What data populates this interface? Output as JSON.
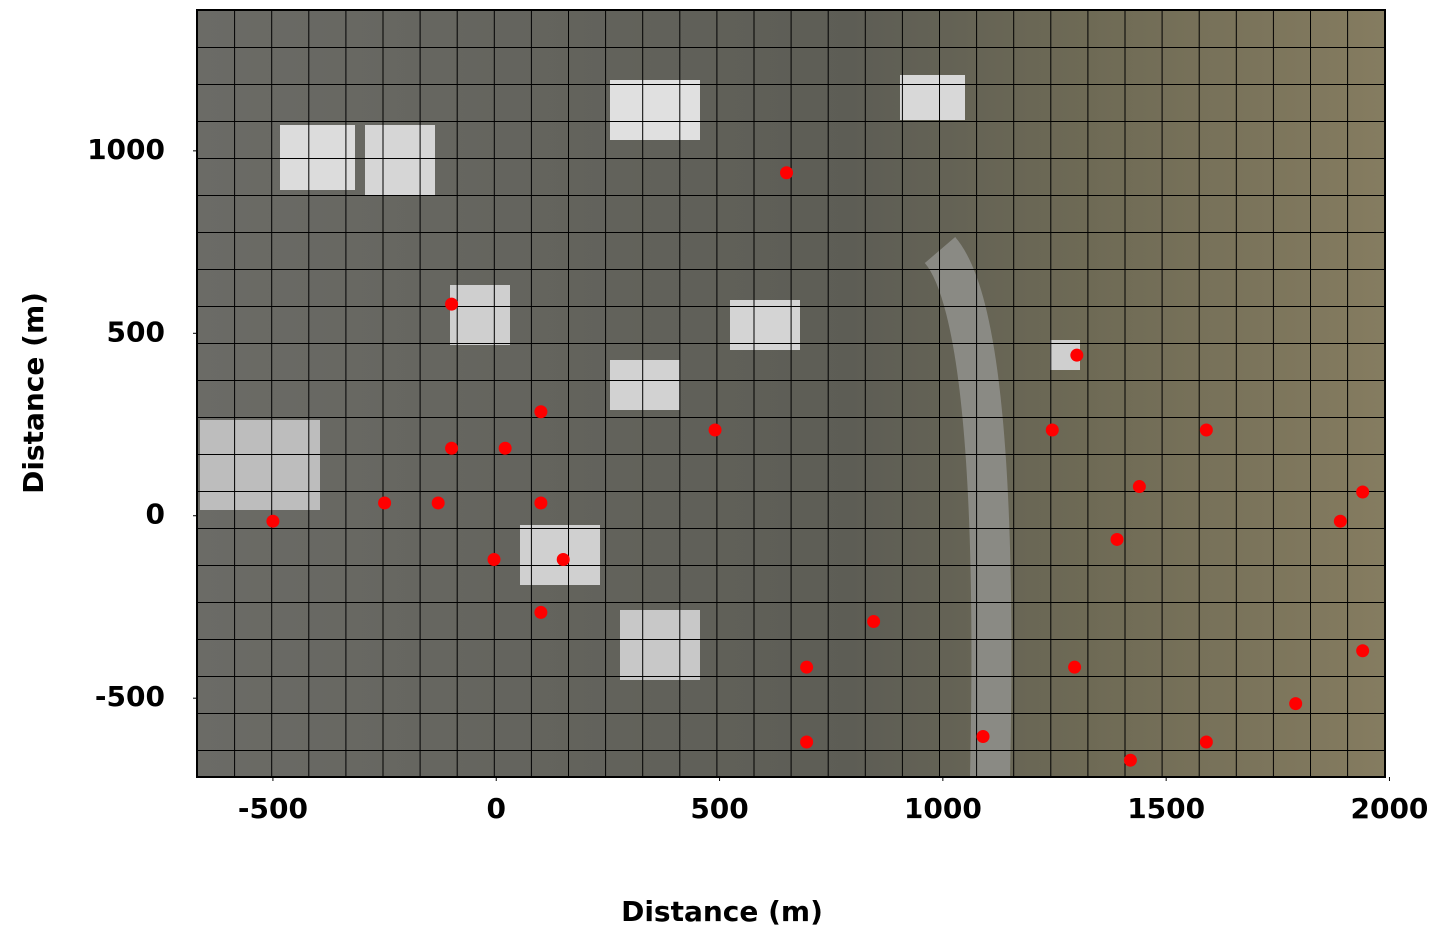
{
  "chart_data": {
    "type": "scatter",
    "x_label": "Distance (m)",
    "y_label": "Distance (m)",
    "color": "#ff0000",
    "x": [
      650,
      -100,
      1300,
      100,
      490,
      1245,
      1590,
      -100,
      20,
      1440,
      1940,
      -500,
      -250,
      -130,
      100,
      1890,
      1390,
      -5,
      150,
      100,
      845,
      1940,
      695,
      1295,
      1790,
      1090,
      695,
      1590,
      1420
    ],
    "y": [
      940,
      580,
      440,
      285,
      235,
      235,
      235,
      185,
      185,
      80,
      65,
      -15,
      35,
      35,
      35,
      -15,
      -65,
      -120,
      -120,
      -265,
      -290,
      -370,
      -415,
      -415,
      -515,
      -605,
      -620,
      -620,
      -670
    ],
    "xlim": [
      -670,
      1990
    ],
    "ylim": [
      -716,
      1386
    ],
    "xticks": [
      -500,
      0,
      500,
      1000,
      1500,
      2000
    ],
    "yticks": [
      -500,
      0,
      500,
      1000
    ]
  }
}
